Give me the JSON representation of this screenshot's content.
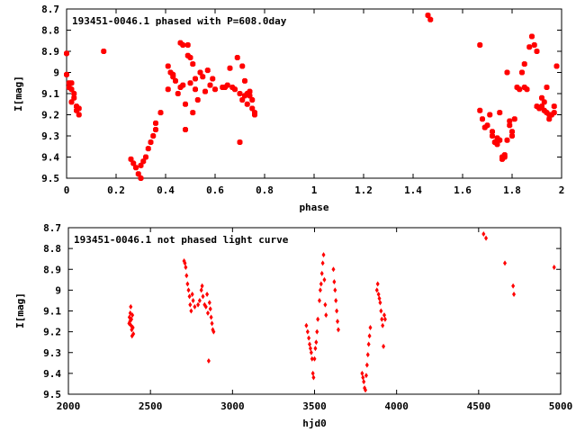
{
  "chart_data": [
    {
      "type": "scatter",
      "title": "193451-0046.1 phased with P=608.0day",
      "xlabel": "phase",
      "ylabel": "I[mag]",
      "xlim": [
        0,
        2
      ],
      "ylim": [
        9.5,
        8.7
      ],
      "y_inverted": true,
      "grid": false,
      "marker_color": "#ff0000",
      "xticks": [
        "0",
        "0.2",
        "0.4",
        "0.6",
        "0.8",
        "1",
        "1.2",
        "1.4",
        "1.6",
        "1.8",
        "2"
      ],
      "yticks": [
        "8.7",
        "8.8",
        "8.9",
        "9",
        "9.1",
        "9.2",
        "9.3",
        "9.4",
        "9.5"
      ],
      "series": [
        {
          "points": [
            [
              0.0,
              8.91
            ],
            [
              0.0,
              9.01
            ],
            [
              0.01,
              9.05
            ],
            [
              0.01,
              9.07
            ],
            [
              0.02,
              9.05
            ],
            [
              0.02,
              9.08
            ],
            [
              0.02,
              9.14
            ],
            [
              0.03,
              9.1
            ],
            [
              0.03,
              9.12
            ],
            [
              0.04,
              9.16
            ],
            [
              0.04,
              9.18
            ],
            [
              0.05,
              9.2
            ],
            [
              0.05,
              9.17
            ],
            [
              0.15,
              8.9
            ],
            [
              0.26,
              9.41
            ],
            [
              0.27,
              9.43
            ],
            [
              0.28,
              9.45
            ],
            [
              0.29,
              9.48
            ],
            [
              0.3,
              9.5
            ],
            [
              0.3,
              9.44
            ],
            [
              0.31,
              9.42
            ],
            [
              0.32,
              9.4
            ],
            [
              0.33,
              9.36
            ],
            [
              0.34,
              9.33
            ],
            [
              0.35,
              9.3
            ],
            [
              0.36,
              9.27
            ],
            [
              0.36,
              9.24
            ],
            [
              0.38,
              9.19
            ],
            [
              0.41,
              8.97
            ],
            [
              0.41,
              9.08
            ],
            [
              0.42,
              9.0
            ],
            [
              0.43,
              9.02
            ],
            [
              0.43,
              9.01
            ],
            [
              0.44,
              9.04
            ],
            [
              0.45,
              9.1
            ],
            [
              0.46,
              9.07
            ],
            [
              0.46,
              8.86
            ],
            [
              0.47,
              8.87
            ],
            [
              0.47,
              9.06
            ],
            [
              0.48,
              9.15
            ],
            [
              0.48,
              9.27
            ],
            [
              0.49,
              8.92
            ],
            [
              0.49,
              8.87
            ],
            [
              0.5,
              8.93
            ],
            [
              0.5,
              9.05
            ],
            [
              0.51,
              9.19
            ],
            [
              0.51,
              8.96
            ],
            [
              0.52,
              9.03
            ],
            [
              0.52,
              9.08
            ],
            [
              0.53,
              9.13
            ],
            [
              0.54,
              9.0
            ],
            [
              0.55,
              9.02
            ],
            [
              0.56,
              9.09
            ],
            [
              0.57,
              8.99
            ],
            [
              0.58,
              9.06
            ],
            [
              0.59,
              9.03
            ],
            [
              0.6,
              9.08
            ],
            [
              0.63,
              9.07
            ],
            [
              0.64,
              9.07
            ],
            [
              0.65,
              9.06
            ],
            [
              0.66,
              8.98
            ],
            [
              0.67,
              9.07
            ],
            [
              0.68,
              9.08
            ],
            [
              0.69,
              8.93
            ],
            [
              0.7,
              9.1
            ],
            [
              0.7,
              9.33
            ],
            [
              0.71,
              8.97
            ],
            [
              0.71,
              9.13
            ],
            [
              0.72,
              9.04
            ],
            [
              0.72,
              9.11
            ],
            [
              0.73,
              9.1
            ],
            [
              0.73,
              9.15
            ],
            [
              0.74,
              9.11
            ],
            [
              0.74,
              9.09
            ],
            [
              0.75,
              9.13
            ],
            [
              0.75,
              9.17
            ],
            [
              0.76,
              9.19
            ],
            [
              0.76,
              9.2
            ],
            [
              1.46,
              8.73
            ],
            [
              1.47,
              8.75
            ],
            [
              1.67,
              9.18
            ],
            [
              1.67,
              8.87
            ],
            [
              1.68,
              9.22
            ],
            [
              1.69,
              9.26
            ],
            [
              1.7,
              9.25
            ],
            [
              1.71,
              9.2
            ],
            [
              1.72,
              9.28
            ],
            [
              1.72,
              9.3
            ],
            [
              1.73,
              9.33
            ],
            [
              1.74,
              9.34
            ],
            [
              1.74,
              9.31
            ],
            [
              1.75,
              9.32
            ],
            [
              1.75,
              9.19
            ],
            [
              1.76,
              9.4
            ],
            [
              1.76,
              9.41
            ],
            [
              1.77,
              9.39
            ],
            [
              1.77,
              9.4
            ],
            [
              1.78,
              9.32
            ],
            [
              1.78,
              9.0
            ],
            [
              1.79,
              9.23
            ],
            [
              1.79,
              9.25
            ],
            [
              1.8,
              9.3
            ],
            [
              1.8,
              9.28
            ],
            [
              1.81,
              9.22
            ],
            [
              1.82,
              9.07
            ],
            [
              1.83,
              9.08
            ],
            [
              1.84,
              9.0
            ],
            [
              1.85,
              9.07
            ],
            [
              1.85,
              8.96
            ],
            [
              1.86,
              9.08
            ],
            [
              1.87,
              8.88
            ],
            [
              1.88,
              8.83
            ],
            [
              1.89,
              8.87
            ],
            [
              1.9,
              8.9
            ],
            [
              1.9,
              9.16
            ],
            [
              1.91,
              9.17
            ],
            [
              1.92,
              9.16
            ],
            [
              1.92,
              9.12
            ],
            [
              1.93,
              9.14
            ],
            [
              1.93,
              9.18
            ],
            [
              1.94,
              9.19
            ],
            [
              1.94,
              9.07
            ],
            [
              1.95,
              9.2
            ],
            [
              1.95,
              9.22
            ],
            [
              1.96,
              9.2
            ],
            [
              1.97,
              9.16
            ],
            [
              1.97,
              9.19
            ],
            [
              1.98,
              8.97
            ]
          ]
        }
      ]
    },
    {
      "type": "scatter",
      "title": "193451-0046.1 not phased light curve",
      "xlabel": "hjd0",
      "ylabel": "I[mag]",
      "xlim": [
        2000,
        5000
      ],
      "ylim": [
        9.5,
        8.7
      ],
      "y_inverted": true,
      "grid": false,
      "marker_color": "#ff0000",
      "xticks": [
        "2000",
        "2500",
        "3000",
        "3500",
        "4000",
        "4500",
        "5000"
      ],
      "yticks": [
        "8.7",
        "8.8",
        "8.9",
        "9",
        "9.1",
        "9.2",
        "9.3",
        "9.4",
        "9.5"
      ],
      "series": [
        {
          "points": [
            [
              2370,
              9.16
            ],
            [
              2372,
              9.13
            ],
            [
              2375,
              9.15
            ],
            [
              2377,
              9.11
            ],
            [
              2380,
              9.08
            ],
            [
              2382,
              9.17
            ],
            [
              2384,
              9.14
            ],
            [
              2386,
              9.19
            ],
            [
              2388,
              9.22
            ],
            [
              2390,
              9.12
            ],
            [
              2393,
              9.18
            ],
            [
              2396,
              9.21
            ],
            [
              2705,
              8.86
            ],
            [
              2710,
              8.87
            ],
            [
              2715,
              8.89
            ],
            [
              2720,
              8.93
            ],
            [
              2726,
              8.97
            ],
            [
              2732,
              9.0
            ],
            [
              2738,
              9.03
            ],
            [
              2742,
              9.07
            ],
            [
              2748,
              9.1
            ],
            [
              2755,
              9.02
            ],
            [
              2760,
              9.05
            ],
            [
              2770,
              9.08
            ],
            [
              2790,
              9.07
            ],
            [
              2800,
              9.05
            ],
            [
              2810,
              9.0
            ],
            [
              2815,
              8.98
            ],
            [
              2820,
              9.03
            ],
            [
              2830,
              9.07
            ],
            [
              2838,
              9.08
            ],
            [
              2845,
              9.02
            ],
            [
              2850,
              9.11
            ],
            [
              2855,
              9.34
            ],
            [
              2860,
              9.06
            ],
            [
              2865,
              9.09
            ],
            [
              2870,
              9.13
            ],
            [
              2875,
              9.16
            ],
            [
              2880,
              9.19
            ],
            [
              2885,
              9.2
            ],
            [
              3450,
              9.17
            ],
            [
              3458,
              9.2
            ],
            [
              3465,
              9.23
            ],
            [
              3470,
              9.26
            ],
            [
              3475,
              9.28
            ],
            [
              3480,
              9.3
            ],
            [
              3485,
              9.33
            ],
            [
              3490,
              9.4
            ],
            [
              3494,
              9.42
            ],
            [
              3500,
              9.33
            ],
            [
              3505,
              9.28
            ],
            [
              3510,
              9.25
            ],
            [
              3515,
              9.2
            ],
            [
              3520,
              9.14
            ],
            [
              3530,
              9.05
            ],
            [
              3535,
              9.0
            ],
            [
              3540,
              8.97
            ],
            [
              3545,
              8.92
            ],
            [
              3550,
              8.87
            ],
            [
              3555,
              8.83
            ],
            [
              3560,
              8.95
            ],
            [
              3565,
              9.07
            ],
            [
              3570,
              9.12
            ],
            [
              3615,
              8.9
            ],
            [
              3620,
              8.96
            ],
            [
              3625,
              9.0
            ],
            [
              3630,
              9.05
            ],
            [
              3635,
              9.1
            ],
            [
              3640,
              9.15
            ],
            [
              3645,
              9.19
            ],
            [
              3790,
              9.4
            ],
            [
              3795,
              9.42
            ],
            [
              3800,
              9.44
            ],
            [
              3805,
              9.47
            ],
            [
              3810,
              9.48
            ],
            [
              3815,
              9.41
            ],
            [
              3820,
              9.36
            ],
            [
              3825,
              9.31
            ],
            [
              3830,
              9.26
            ],
            [
              3835,
              9.22
            ],
            [
              3840,
              9.18
            ],
            [
              3880,
              9.0
            ],
            [
              3885,
              8.97
            ],
            [
              3890,
              9.02
            ],
            [
              3895,
              9.04
            ],
            [
              3900,
              9.06
            ],
            [
              3905,
              9.1
            ],
            [
              3910,
              9.14
            ],
            [
              3915,
              9.17
            ],
            [
              3920,
              9.27
            ],
            [
              3925,
              9.12
            ],
            [
              3930,
              9.14
            ],
            [
              4530,
              8.73
            ],
            [
              4545,
              8.75
            ],
            [
              4660,
              8.87
            ],
            [
              4710,
              8.98
            ],
            [
              4715,
              9.02
            ],
            [
              4960,
              8.89
            ]
          ]
        }
      ]
    }
  ]
}
